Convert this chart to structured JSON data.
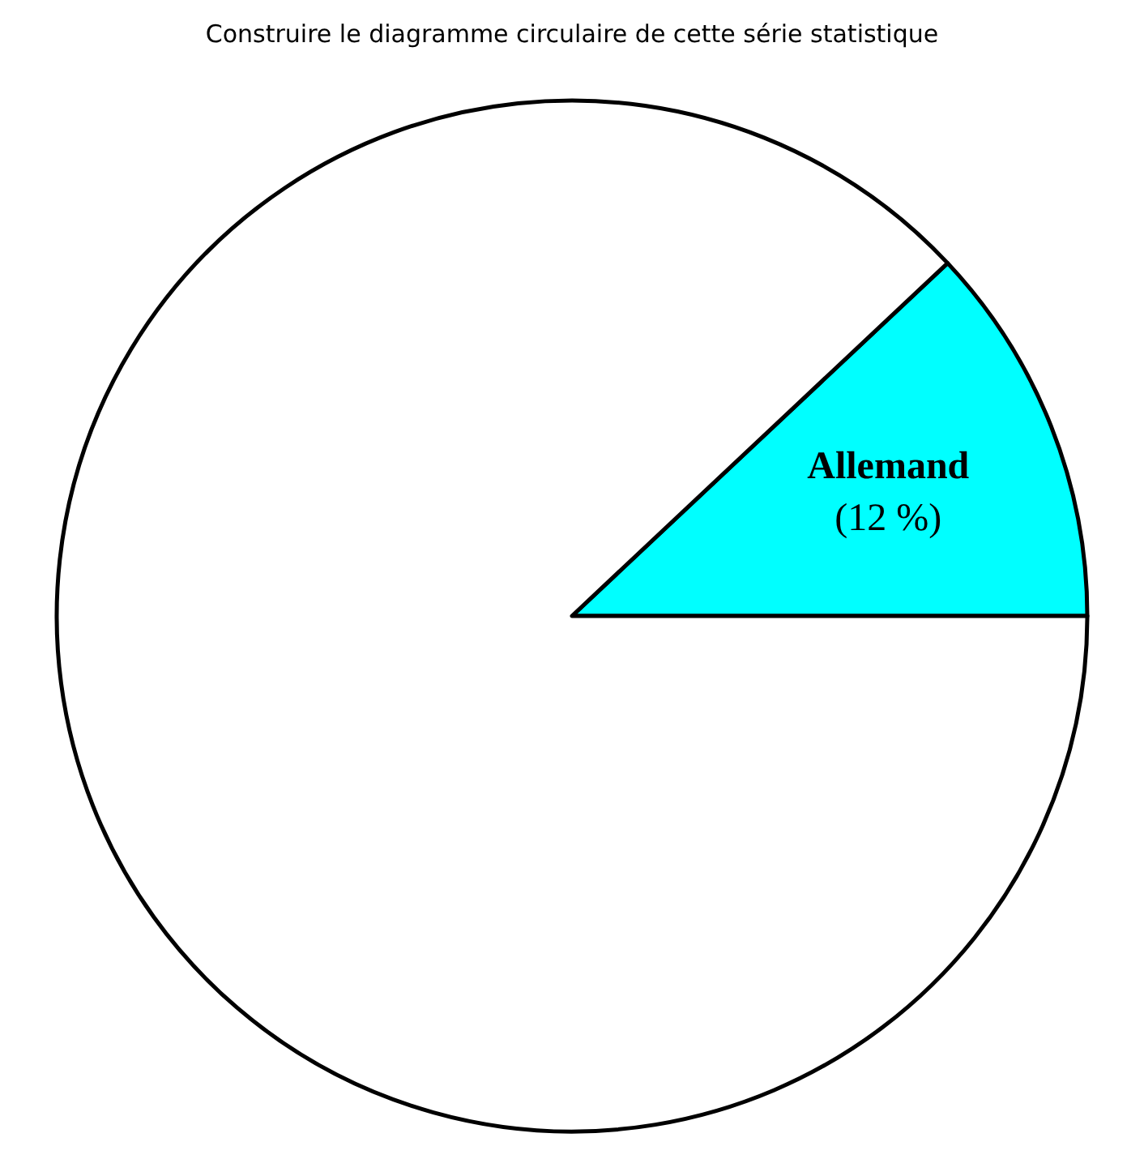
{
  "chart_data": {
    "type": "pie",
    "title": "Construire le diagramme circulaire de cette série statistique",
    "categories": [
      "Allemand",
      null
    ],
    "values": [
      12,
      88
    ],
    "colors": [
      "#00ffff",
      "#ffffff"
    ],
    "value_labels": [
      "(12 %)",
      null
    ]
  }
}
